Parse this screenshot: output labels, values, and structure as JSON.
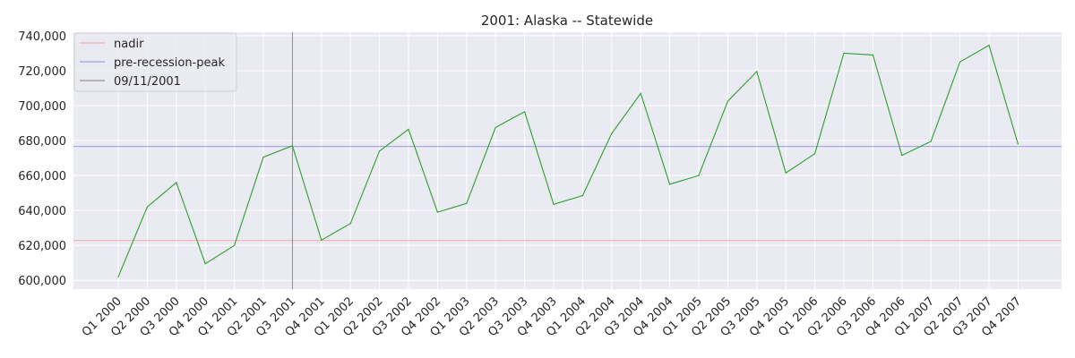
{
  "chart_data": {
    "type": "line",
    "title": "2001: Alaska -- Statewide",
    "xlabel": "",
    "ylabel": "",
    "categories": [
      "Q1 2000",
      "Q2 2000",
      "Q3 2000",
      "Q4 2000",
      "Q1 2001",
      "Q2 2001",
      "Q3 2001",
      "Q4 2001",
      "Q1 2002",
      "Q2 2002",
      "Q3 2002",
      "Q4 2002",
      "Q1 2003",
      "Q2 2003",
      "Q3 2003",
      "Q4 2003",
      "Q1 2004",
      "Q2 2004",
      "Q3 2004",
      "Q4 2004",
      "Q1 2005",
      "Q2 2005",
      "Q3 2005",
      "Q4 2005",
      "Q1 2006",
      "Q2 2006",
      "Q3 2006",
      "Q4 2006",
      "Q1 2007",
      "Q2 2007",
      "Q3 2007",
      "Q4 2007"
    ],
    "series": [
      {
        "name": "",
        "color": "#2ca02c",
        "values": [
          602000,
          642000,
          656000,
          609500,
          620000,
          670500,
          677000,
          623000,
          632500,
          674000,
          686500,
          639000,
          644000,
          687500,
          696500,
          643500,
          648500,
          684000,
          707000,
          655000,
          660000,
          702500,
          719500,
          661500,
          672500,
          730000,
          729000,
          671500,
          679500,
          725000,
          734500,
          678000
        ]
      }
    ],
    "reference_lines": [
      {
        "name": "nadir",
        "orientation": "horizontal",
        "value": 622800,
        "color": "#f4a0a5"
      },
      {
        "name": "pre-recession-peak",
        "orientation": "horizontal",
        "value": 676600,
        "color": "#8f8fd9"
      },
      {
        "name": "09/11/2001",
        "orientation": "vertical",
        "category": "Q3 2001",
        "color": "#7f7f7f"
      }
    ],
    "yticks": [
      600000,
      620000,
      640000,
      660000,
      680000,
      700000,
      720000,
      740000
    ],
    "ytick_labels": [
      "600,000",
      "620,000",
      "640,000",
      "660,000",
      "680,000",
      "700,000",
      "720,000",
      "740,000"
    ],
    "ylim": [
      595000,
      742000
    ],
    "grid": true,
    "legend_position": "top-left",
    "background": "#eaeaf2"
  }
}
